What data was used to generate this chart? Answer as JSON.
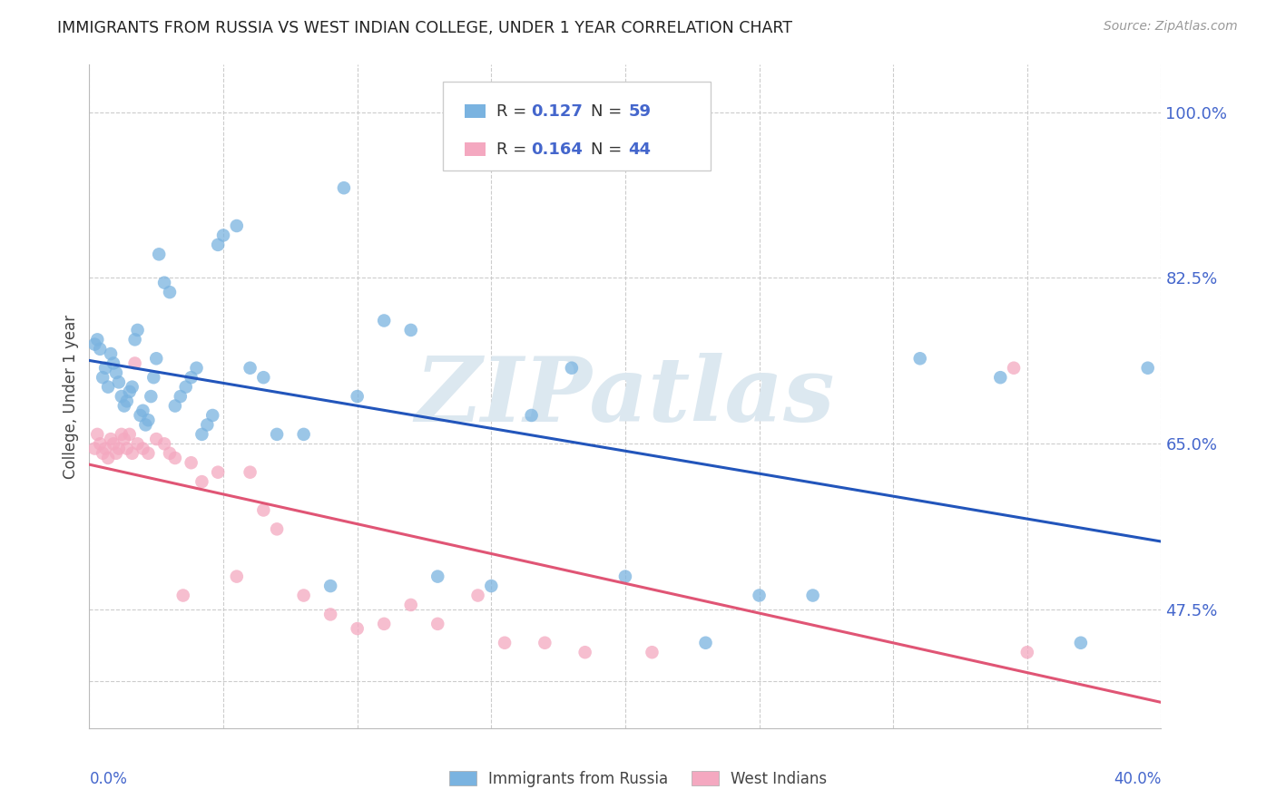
{
  "title": "IMMIGRANTS FROM RUSSIA VS WEST INDIAN COLLEGE, UNDER 1 YEAR CORRELATION CHART",
  "source": "Source: ZipAtlas.com",
  "ylabel": "College, Under 1 year",
  "xmin": 0.0,
  "xmax": 0.4,
  "ymin": 0.35,
  "ymax": 1.05,
  "legend_r1_val": "0.127",
  "legend_n1_val": "59",
  "legend_r2_val": "0.164",
  "legend_n2_val": "44",
  "blue_color": "#7ab3e0",
  "pink_color": "#f4a8c0",
  "blue_line_color": "#2255bb",
  "pink_line_color": "#e05575",
  "title_color": "#222222",
  "axis_label_color": "#4466cc",
  "watermark_color": "#dce8f0",
  "blue_scatter_x": [
    0.002,
    0.003,
    0.004,
    0.005,
    0.006,
    0.007,
    0.008,
    0.009,
    0.01,
    0.011,
    0.012,
    0.013,
    0.014,
    0.015,
    0.016,
    0.017,
    0.018,
    0.019,
    0.02,
    0.021,
    0.022,
    0.023,
    0.024,
    0.025,
    0.026,
    0.028,
    0.03,
    0.032,
    0.034,
    0.036,
    0.038,
    0.04,
    0.042,
    0.044,
    0.046,
    0.048,
    0.05,
    0.055,
    0.06,
    0.065,
    0.07,
    0.08,
    0.09,
    0.095,
    0.1,
    0.11,
    0.12,
    0.13,
    0.15,
    0.165,
    0.18,
    0.2,
    0.23,
    0.25,
    0.27,
    0.31,
    0.34,
    0.37,
    0.395
  ],
  "blue_scatter_y": [
    0.755,
    0.76,
    0.75,
    0.72,
    0.73,
    0.71,
    0.745,
    0.735,
    0.725,
    0.715,
    0.7,
    0.69,
    0.695,
    0.705,
    0.71,
    0.76,
    0.77,
    0.68,
    0.685,
    0.67,
    0.675,
    0.7,
    0.72,
    0.74,
    0.85,
    0.82,
    0.81,
    0.69,
    0.7,
    0.71,
    0.72,
    0.73,
    0.66,
    0.67,
    0.68,
    0.86,
    0.87,
    0.88,
    0.73,
    0.72,
    0.66,
    0.66,
    0.5,
    0.92,
    0.7,
    0.78,
    0.77,
    0.51,
    0.5,
    0.68,
    0.73,
    0.51,
    0.44,
    0.49,
    0.49,
    0.74,
    0.72,
    0.44,
    0.73
  ],
  "pink_scatter_x": [
    0.002,
    0.003,
    0.004,
    0.005,
    0.006,
    0.007,
    0.008,
    0.009,
    0.01,
    0.011,
    0.012,
    0.013,
    0.014,
    0.015,
    0.016,
    0.017,
    0.018,
    0.02,
    0.022,
    0.025,
    0.028,
    0.03,
    0.032,
    0.035,
    0.038,
    0.042,
    0.048,
    0.055,
    0.06,
    0.065,
    0.07,
    0.08,
    0.09,
    0.1,
    0.11,
    0.12,
    0.13,
    0.145,
    0.155,
    0.17,
    0.185,
    0.21,
    0.345,
    0.35
  ],
  "pink_scatter_y": [
    0.645,
    0.66,
    0.65,
    0.64,
    0.645,
    0.635,
    0.655,
    0.65,
    0.64,
    0.645,
    0.66,
    0.655,
    0.645,
    0.66,
    0.64,
    0.735,
    0.65,
    0.645,
    0.64,
    0.655,
    0.65,
    0.64,
    0.635,
    0.49,
    0.63,
    0.61,
    0.62,
    0.51,
    0.62,
    0.58,
    0.56,
    0.49,
    0.47,
    0.455,
    0.46,
    0.48,
    0.46,
    0.49,
    0.44,
    0.44,
    0.43,
    0.43,
    0.73,
    0.43
  ],
  "ytick_vals": [
    0.4,
    0.475,
    0.65,
    0.825,
    1.0
  ],
  "ytick_labels": [
    "",
    "47.5%",
    "65.0%",
    "82.5%",
    "100.0%"
  ],
  "xtick_count": 9
}
